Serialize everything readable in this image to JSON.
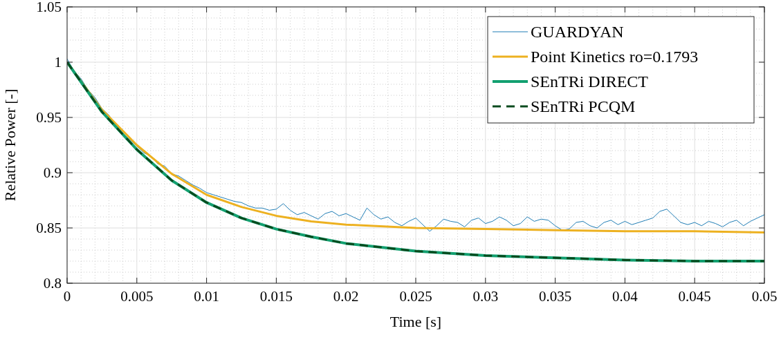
{
  "chart_data": {
    "type": "line",
    "xlabel": "Time [s]",
    "ylabel": "Relative Power [-]",
    "xlim": [
      0,
      0.05
    ],
    "ylim": [
      0.8,
      1.05
    ],
    "xticks": [
      0,
      0.005,
      0.01,
      0.015,
      0.02,
      0.025,
      0.03,
      0.035,
      0.04,
      0.045,
      0.05
    ],
    "yticks": [
      0.8,
      0.85,
      0.9,
      0.95,
      1,
      1.05
    ],
    "grid": true,
    "legend": "top right",
    "series": [
      {
        "name": "GUARDYAN",
        "color": "#1f7db5",
        "x": [
          0,
          0.0005,
          0.001,
          0.0015,
          0.002,
          0.0025,
          0.003,
          0.0035,
          0.004,
          0.0045,
          0.005,
          0.0055,
          0.006,
          0.0065,
          0.007,
          0.0075,
          0.008,
          0.0085,
          0.009,
          0.0095,
          0.01,
          0.0105,
          0.011,
          0.0115,
          0.012,
          0.0125,
          0.013,
          0.0135,
          0.014,
          0.0145,
          0.015,
          0.0155,
          0.016,
          0.0165,
          0.017,
          0.0175,
          0.018,
          0.0185,
          0.019,
          0.0195,
          0.02,
          0.0205,
          0.021,
          0.0215,
          0.022,
          0.0225,
          0.023,
          0.0235,
          0.024,
          0.0245,
          0.025,
          0.0255,
          0.026,
          0.0265,
          0.027,
          0.0275,
          0.028,
          0.0285,
          0.029,
          0.0295,
          0.03,
          0.0305,
          0.031,
          0.0315,
          0.032,
          0.0325,
          0.033,
          0.0335,
          0.034,
          0.0345,
          0.035,
          0.0355,
          0.036,
          0.0365,
          0.037,
          0.0375,
          0.038,
          0.0385,
          0.039,
          0.0395,
          0.04,
          0.0405,
          0.041,
          0.0415,
          0.042,
          0.0425,
          0.043,
          0.0435,
          0.044,
          0.0445,
          0.045,
          0.0455,
          0.046,
          0.0465,
          0.047,
          0.0475,
          0.048,
          0.0485,
          0.049,
          0.0495,
          0.05
        ],
        "values": [
          1.003,
          0.992,
          0.985,
          0.975,
          0.968,
          0.958,
          0.952,
          0.943,
          0.935,
          0.93,
          0.924,
          0.918,
          0.915,
          0.908,
          0.906,
          0.899,
          0.897,
          0.893,
          0.889,
          0.886,
          0.882,
          0.88,
          0.878,
          0.876,
          0.874,
          0.873,
          0.87,
          0.868,
          0.868,
          0.866,
          0.867,
          0.872,
          0.866,
          0.862,
          0.864,
          0.861,
          0.858,
          0.863,
          0.865,
          0.861,
          0.863,
          0.86,
          0.857,
          0.868,
          0.862,
          0.858,
          0.86,
          0.855,
          0.852,
          0.856,
          0.859,
          0.853,
          0.847,
          0.852,
          0.858,
          0.856,
          0.855,
          0.851,
          0.857,
          0.859,
          0.854,
          0.856,
          0.86,
          0.857,
          0.852,
          0.854,
          0.86,
          0.856,
          0.858,
          0.857,
          0.852,
          0.848,
          0.849,
          0.855,
          0.856,
          0.852,
          0.85,
          0.855,
          0.857,
          0.853,
          0.856,
          0.853,
          0.855,
          0.857,
          0.859,
          0.865,
          0.867,
          0.861,
          0.855,
          0.853,
          0.855,
          0.852,
          0.856,
          0.854,
          0.851,
          0.855,
          0.857,
          0.852,
          0.856,
          0.859,
          0.862
        ]
      },
      {
        "name": "Point Kinetics ro=0.1793",
        "color": "#edb120",
        "x": [
          0,
          0.0025,
          0.005,
          0.0075,
          0.01,
          0.0125,
          0.015,
          0.0175,
          0.02,
          0.025,
          0.03,
          0.035,
          0.04,
          0.045,
          0.05
        ],
        "values": [
          1,
          0.957,
          0.925,
          0.899,
          0.88,
          0.869,
          0.861,
          0.856,
          0.853,
          0.85,
          0.849,
          0.848,
          0.847,
          0.847,
          0.846
        ]
      },
      {
        "name": "SEnTRi DIRECT",
        "color": "#12a070",
        "x": [
          0,
          0.0025,
          0.005,
          0.0075,
          0.01,
          0.0125,
          0.015,
          0.0175,
          0.02,
          0.025,
          0.03,
          0.035,
          0.04,
          0.045,
          0.05
        ],
        "values": [
          1,
          0.955,
          0.921,
          0.893,
          0.873,
          0.859,
          0.849,
          0.842,
          0.836,
          0.829,
          0.825,
          0.823,
          0.821,
          0.82,
          0.82
        ]
      },
      {
        "name": "SEnTRi PCQM",
        "color": "#0b4a1e",
        "line_style": "dashed",
        "x": [
          0,
          0.0025,
          0.005,
          0.0075,
          0.01,
          0.0125,
          0.015,
          0.0175,
          0.02,
          0.025,
          0.03,
          0.035,
          0.04,
          0.045,
          0.05
        ],
        "values": [
          1,
          0.955,
          0.921,
          0.893,
          0.873,
          0.859,
          0.849,
          0.842,
          0.836,
          0.829,
          0.825,
          0.823,
          0.821,
          0.82,
          0.82
        ]
      }
    ]
  }
}
